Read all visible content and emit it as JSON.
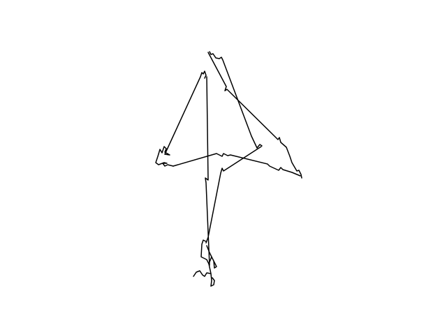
{
  "drawing": {
    "subject": "line sketch",
    "stroke_color": "#000000",
    "background_color": "#ffffff"
  }
}
